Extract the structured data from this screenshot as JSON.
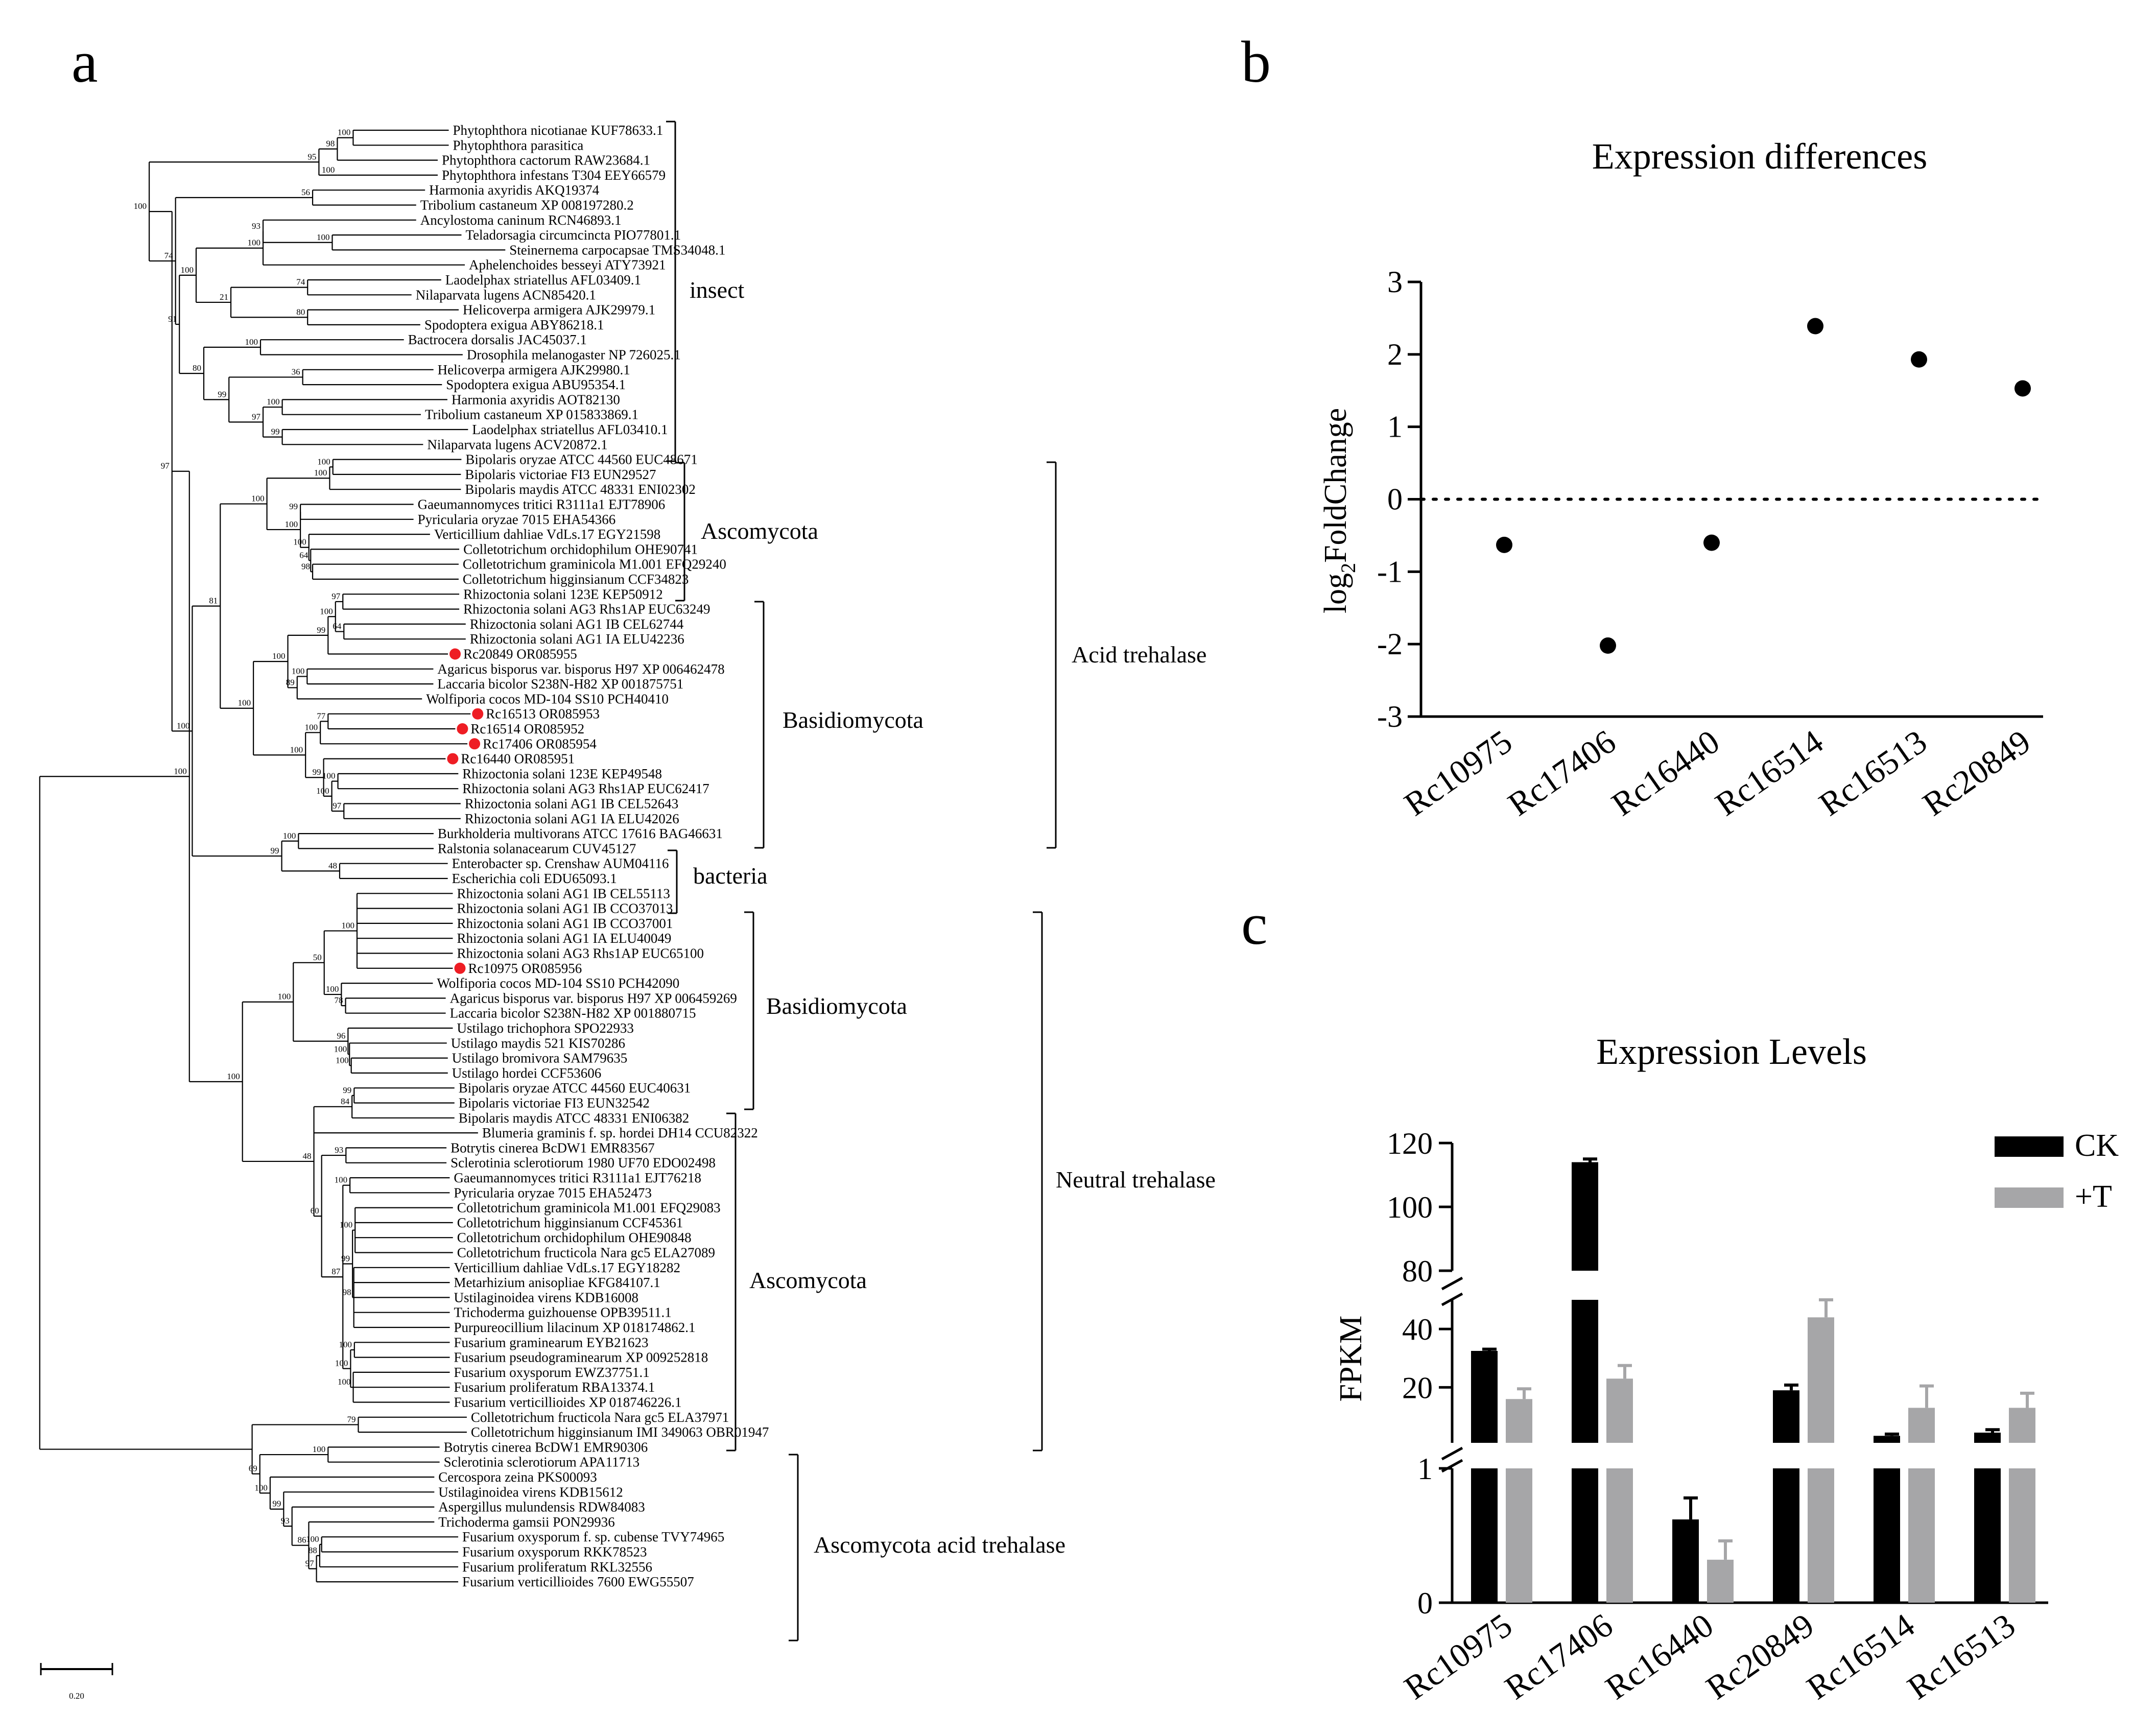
{
  "figure": {
    "panel_a_label": "a",
    "panel_b_label": "b",
    "panel_c_label": "c",
    "colors": {
      "ink": "#000000",
      "highlight": "#ee1d24",
      "treated": "#a6a6a8"
    }
  },
  "tree": {
    "scale_label": "0.20",
    "leaves": [
      {
        "label": "Phytophthora nicotianae KUF78633.1",
        "x": 0.6655
      },
      {
        "label": "Phytophthora parasitica",
        "x": 0.6655
      },
      {
        "label": "Phytophthora cactorum RAW23684.1",
        "x": 0.6484
      },
      {
        "label": "Phytophthora infestans T304 EEY66579",
        "x": 0.6484
      },
      {
        "label": "Harmonia axyridis AKQ19374",
        "x": 0.6287
      },
      {
        "label": "Tribolium castaneum XP 008197280.2",
        "x": 0.6149
      },
      {
        "label": "Ancylostoma caninum RCN46893.1",
        "x": 0.6149
      },
      {
        "label": "Teladorsagia circumcincta PIO77801.1",
        "x": 0.6853
      },
      {
        "label": "Steinernema carpocapsae TMS34048.1",
        "x": 0.7534
      },
      {
        "label": "Aphelenchoides besseyi ATY73921",
        "x": 0.6905
      },
      {
        "label": "Laodelphax striatellus AFL03409.1",
        "x": 0.6538
      },
      {
        "label": "Nilaparvata lugens ACN85420.1",
        "x": 0.6077
      },
      {
        "label": "Helicoverpa armigera AJK29979.1",
        "x": 0.681
      },
      {
        "label": "Spodoptera exigua ABY86218.1",
        "x": 0.6213
      },
      {
        "label": "Bactrocera dorsalis JAC45037.1",
        "x": 0.5958
      },
      {
        "label": "Drosophila melanogaster NP 726025.1",
        "x": 0.6872
      },
      {
        "label": "Helicoverpa armigera AJK29980.1",
        "x": 0.6418
      },
      {
        "label": "Spodoptera exigua ABU95354.1",
        "x": 0.655
      },
      {
        "label": "Harmonia axyridis AOT82130",
        "x": 0.6634
      },
      {
        "label": "Tribolium castaneum XP 015833869.1",
        "x": 0.6222
      },
      {
        "label": "Laodelphax striatellus AFL03410.1",
        "x": 0.6955
      },
      {
        "label": "Nilaparvata lugens ACV20872.1",
        "x": 0.6257
      },
      {
        "label": "Bipolaris oryzae ATCC 44560 EUC48671",
        "x": 0.6852
      },
      {
        "label": "Bipolaris victoriae FI3 EUN29527",
        "x": 0.6844
      },
      {
        "label": "Bipolaris maydis ATCC 48331 ENI02302",
        "x": 0.6844
      },
      {
        "label": "Gaeumannomyces tritici R3111a1 EJT78906",
        "x": 0.6108
      },
      {
        "label": "Pyricularia oryzae 7015 EHA54366",
        "x": 0.6108
      },
      {
        "label": "Verticillium dahliae VdLs.17 EGY21598",
        "x": 0.6364
      },
      {
        "label": "Colletotrichum orchidophilum OHE90741",
        "x": 0.6818
      },
      {
        "label": "Colletotrichum graminicola M1.001 EFQ29240",
        "x": 0.6809
      },
      {
        "label": "Colletotrichum higginsianum CCF34823",
        "x": 0.6809
      },
      {
        "label": "Rhizoctonia solani 123E KEP50912",
        "x": 0.6818
      },
      {
        "label": "Rhizoctonia solani AG3 Rhs1AP EUC63249",
        "x": 0.6818
      },
      {
        "label": "Rhizoctonia solani AG1 IB CEL62744",
        "x": 0.6919
      },
      {
        "label": "Rhizoctonia solani AG1 IA ELU42236",
        "x": 0.6919
      },
      {
        "label": "Rc20849 OR085955",
        "x": 0.6643
      },
      {
        "label": "Agaricus bisporus var. bisporus H97 XP 006462478",
        "x": 0.6416
      },
      {
        "label": "Laccaria bicolor S238N-H82 XP 001875751",
        "x": 0.6416
      },
      {
        "label": "Wolfiporia cocos MD-104 SS10 PCH40410",
        "x": 0.624
      },
      {
        "label": "Rc16513 OR085953",
        "x": 0.6994
      },
      {
        "label": "Rc16514 OR085952",
        "x": 0.6757
      },
      {
        "label": "Rc17406 OR085954",
        "x": 0.6945
      },
      {
        "label": "Rc16440 OR085951",
        "x": 0.6606
      },
      {
        "label": "Rhizoctonia solani 123E KEP49548",
        "x": 0.6804
      },
      {
        "label": "Rhizoctonia solani AG3 Rhs1AP EUC62417",
        "x": 0.6804
      },
      {
        "label": "Rhizoctonia solani AG1 IB CEL52643",
        "x": 0.684
      },
      {
        "label": "Rhizoctonia solani AG1 IA ELU42026",
        "x": 0.684
      },
      {
        "label": "Burkholderia multivorans ATCC 17616 BAG46631",
        "x": 0.642
      },
      {
        "label": "Ralstonia solanacearum CUV45127",
        "x": 0.642
      },
      {
        "label": "Enterobacter sp. Crenshaw AUM04116",
        "x": 0.664
      },
      {
        "label": "Escherichia coli EDU65093.1",
        "x": 0.664
      },
      {
        "label": "Rhizoctonia solani AG1 IB CEL55113",
        "x": 0.6718
      },
      {
        "label": "Rhizoctonia solani AG1 IB CCO37013",
        "x": 0.6718
      },
      {
        "label": "Rhizoctonia solani AG1 IB CCO37001",
        "x": 0.6718
      },
      {
        "label": "Rhizoctonia solani AG1 IA ELU40049",
        "x": 0.6718
      },
      {
        "label": "Rhizoctonia solani AG3 Rhs1AP EUC65100",
        "x": 0.6718
      },
      {
        "label": "Rc10975 OR085956",
        "x": 0.6718
      },
      {
        "label": "Wolfiporia cocos MD-104 SS10 PCH42090",
        "x": 0.6408
      },
      {
        "label": "Agaricus bisporus var. bisporus H97 XP 006459269",
        "x": 0.6608
      },
      {
        "label": "Laccaria bicolor S238N-H82 XP 001880715",
        "x": 0.6608
      },
      {
        "label": "Ustilago trichophora SPO22933",
        "x": 0.6718
      },
      {
        "label": "Ustilago maydis 521 KIS70286",
        "x": 0.6625
      },
      {
        "label": "Ustilago bromivora SAM79635",
        "x": 0.6641
      },
      {
        "label": "Ustilago hordei CCF53606",
        "x": 0.6641
      },
      {
        "label": "Bipolaris oryzae ATCC 44560 EUC40631",
        "x": 0.6744
      },
      {
        "label": "Bipolaris victoriae FI3 EUN32542",
        "x": 0.6744
      },
      {
        "label": "Bipolaris maydis ATCC 48331 ENI06382",
        "x": 0.6744
      },
      {
        "label": "Blumeria graminis f. sp. hordei DH14 CCU82322",
        "x": 0.711
      },
      {
        "label": "Botrytis cinerea BcDW1 EMR83567",
        "x": 0.662
      },
      {
        "label": "Sclerotinia sclerotiorum 1980 UF70 EDO02498",
        "x": 0.662
      },
      {
        "label": "Gaeumannomyces tritici R3111a1 EJT76218",
        "x": 0.667
      },
      {
        "label": "Pyricularia oryzae 7015 EHA52473",
        "x": 0.667
      },
      {
        "label": "Colletotrichum graminicola M1.001 EFQ29083",
        "x": 0.672
      },
      {
        "label": "Colletotrichum higginsianum CCF45361",
        "x": 0.672
      },
      {
        "label": "Colletotrichum orchidophilum OHE90848",
        "x": 0.672
      },
      {
        "label": "Colletotrichum fructicola Nara gc5 ELA27089",
        "x": 0.672
      },
      {
        "label": "Verticillium dahliae VdLs.17 EGY18282",
        "x": 0.6671
      },
      {
        "label": "Metarhizium anisopliae KFG84107.1",
        "x": 0.6671
      },
      {
        "label": "Ustilaginoidea virens KDB16008",
        "x": 0.6671
      },
      {
        "label": "Trichoderma guizhouense OPB39511.1",
        "x": 0.6671
      },
      {
        "label": "Purpureocillium lilacinum XP 018174862.1",
        "x": 0.6671
      },
      {
        "label": "Fusarium graminearum EYB21623",
        "x": 0.6671
      },
      {
        "label": "Fusarium pseudograminearum XP 009252818",
        "x": 0.6671
      },
      {
        "label": "Fusarium oxysporum EWZ37751.1",
        "x": 0.6671
      },
      {
        "label": "Fusarium proliferatum RBA13374.1",
        "x": 0.6671
      },
      {
        "label": "Fusarium verticillioides XP 018746226.1",
        "x": 0.6671
      },
      {
        "label": "Colletotrichum fructicola Nara gc5 ELA37971",
        "x": 0.6936
      },
      {
        "label": "Colletotrichum higginsianum IMI 349063 OBR01947",
        "x": 0.6936
      },
      {
        "label": "Botrytis cinerea BcDW1 EMR90306",
        "x": 0.6513
      },
      {
        "label": "Sclerotinia sclerotiorum APA11713",
        "x": 0.6513
      },
      {
        "label": "Cercospora zeina PKS00093",
        "x": 0.6431
      },
      {
        "label": "Ustilaginoidea virens KDB15612",
        "x": 0.6431
      },
      {
        "label": "Aspergillus mulundensis RDW84083",
        "x": 0.6431
      },
      {
        "label": "Trichoderma gamsii PON29936",
        "x": 0.6431
      },
      {
        "label": "Fusarium oxysporum f. sp. cubense TVY74965",
        "x": 0.6802
      },
      {
        "label": "Fusarium oxysporum RKK78523",
        "x": 0.6802
      },
      {
        "label": "Fusarium proliferatum RKL32556",
        "x": 0.6802
      },
      {
        "label": "Fusarium verticillioides 7600 EWG55507",
        "x": 0.6802
      }
    ],
    "highlighted_sequences": [
      "Rc20849 OR085955",
      "Rc16513 OR085953",
      "Rc16514 OR085952",
      "Rc17406 OR085954",
      "Rc16440 OR085951",
      "Rc10975 OR085956"
    ],
    "bootstrap_values": [
      "100",
      "98",
      "100",
      "95",
      "56",
      "100",
      "93",
      "100",
      "74",
      "80",
      "21",
      "100",
      "100",
      "36",
      "100",
      "99",
      "97",
      "99",
      "80",
      "91",
      "74",
      "100",
      "100",
      "100",
      "99",
      "98",
      "64",
      "100",
      "100",
      "100",
      "97",
      "64",
      "100",
      "99",
      "100",
      "89",
      "100",
      "77",
      "100",
      "100",
      "97",
      "100",
      "99",
      "100",
      "100",
      "81",
      "100",
      "48",
      "99",
      "100",
      "97",
      "100",
      "78",
      "100",
      "50",
      "100",
      "100",
      "96",
      "100",
      "99",
      "84",
      "93",
      "100",
      "100",
      "98",
      "99",
      "100",
      "100",
      "100",
      "87",
      "60",
      "48",
      "100",
      "100",
      "79",
      "100",
      "100",
      "88",
      "97",
      "86",
      "93",
      "99",
      "100",
      "69"
    ],
    "clades": [
      {
        "label": "insect"
      },
      {
        "label": "Ascomycota"
      },
      {
        "label": "Basidiomycota"
      },
      {
        "label": "bacteria"
      },
      {
        "label": "Basidiomycota"
      },
      {
        "label": "Ascomycota"
      },
      {
        "label": "Ascomycota acid trehalase"
      },
      {
        "label": "Acid trehalase"
      },
      {
        "label": "Neutral trehalase"
      }
    ]
  },
  "chart_data": [
    {
      "type": "scatter",
      "title": "Expression differences",
      "ylabel": "log2FoldChange",
      "ylabel_main": "log",
      "ylabel_sub": "2",
      "ylabel_rest": "FoldChange",
      "xlabel": "",
      "ylim": [
        -3,
        3
      ],
      "yticks": [
        3,
        2,
        1,
        0,
        -1,
        -2,
        -3
      ],
      "ytick_labels": [
        "3",
        "2",
        "1",
        "0",
        "-1",
        "-2",
        "-3"
      ],
      "reference_line": 0,
      "categories": [
        "Rc10975",
        "Rc17406",
        "Rc16440",
        "Rc16514",
        "Rc16513",
        "Rc20849"
      ],
      "values": [
        -0.63,
        -2.02,
        -0.6,
        2.39,
        1.93,
        1.53
      ]
    },
    {
      "type": "bar",
      "title": "Expression Levels",
      "ylabel": "FPKM",
      "xlabel": "",
      "broken_axis": [
        [
          0,
          1
        ],
        [
          1,
          50
        ],
        [
          80,
          120
        ]
      ],
      "yticks": [
        120,
        100,
        80,
        40,
        20,
        1,
        0
      ],
      "ytick_labels": [
        "120",
        "100",
        "80",
        "40",
        "20",
        "1",
        "0"
      ],
      "categories": [
        "Rc10975",
        "Rc17406",
        "Rc16440",
        "Rc20849",
        "Rc16514",
        "Rc16513"
      ],
      "series": [
        {
          "name": "CK",
          "color": "#000000",
          "values": [
            32.5,
            114,
            0.62,
            19,
            3.4,
            4.5
          ],
          "errors": [
            0.6,
            1.0,
            0.16,
            1.8,
            0.6,
            1.0
          ]
        },
        {
          "name": "+T",
          "color": "#a6a6a8",
          "values": [
            16,
            23,
            0.32,
            44,
            13,
            13
          ],
          "errors": [
            3.5,
            4.5,
            0.14,
            6.0,
            7.5,
            5.0
          ]
        }
      ]
    }
  ]
}
